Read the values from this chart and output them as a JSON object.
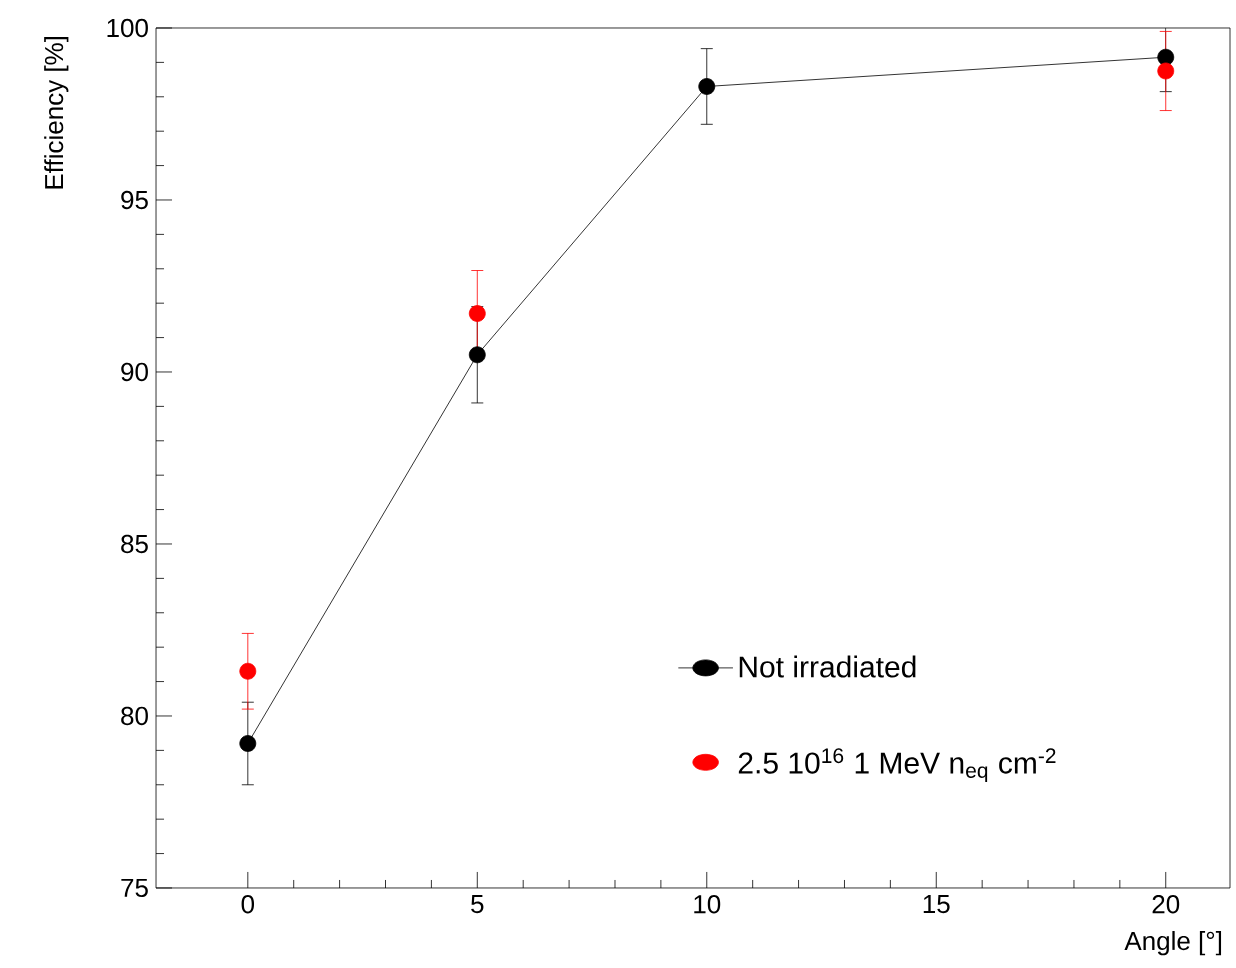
{
  "chart_data": {
    "type": "line",
    "xlabel": "Angle [°]",
    "ylabel": "Efficiency [%]",
    "x": [
      0,
      5,
      10,
      20
    ],
    "series": [
      {
        "name": "Not irradiated",
        "color": "#000000",
        "values": [
          79.2,
          90.5,
          98.3,
          99.15
        ],
        "errors": [
          1.2,
          1.4,
          1.1,
          1.0
        ]
      },
      {
        "name": "2.5 10$^{16}$ 1 MeV n$_{eq}$ cm$^{-2}$",
        "type": "scatter",
        "color": "#ff0000",
        "x": [
          0,
          5,
          20
        ],
        "values": [
          81.3,
          91.7,
          98.75
        ],
        "errors": [
          1.1,
          1.25,
          1.15
        ]
      }
    ],
    "xlim": [
      -2,
      21.4
    ],
    "ylim": [
      75,
      100
    ],
    "xticks": [
      0,
      5,
      10,
      15,
      20
    ],
    "yticks": [
      75,
      80,
      85,
      90,
      95,
      100
    ],
    "marker": "circle",
    "legend": "bottom right"
  }
}
